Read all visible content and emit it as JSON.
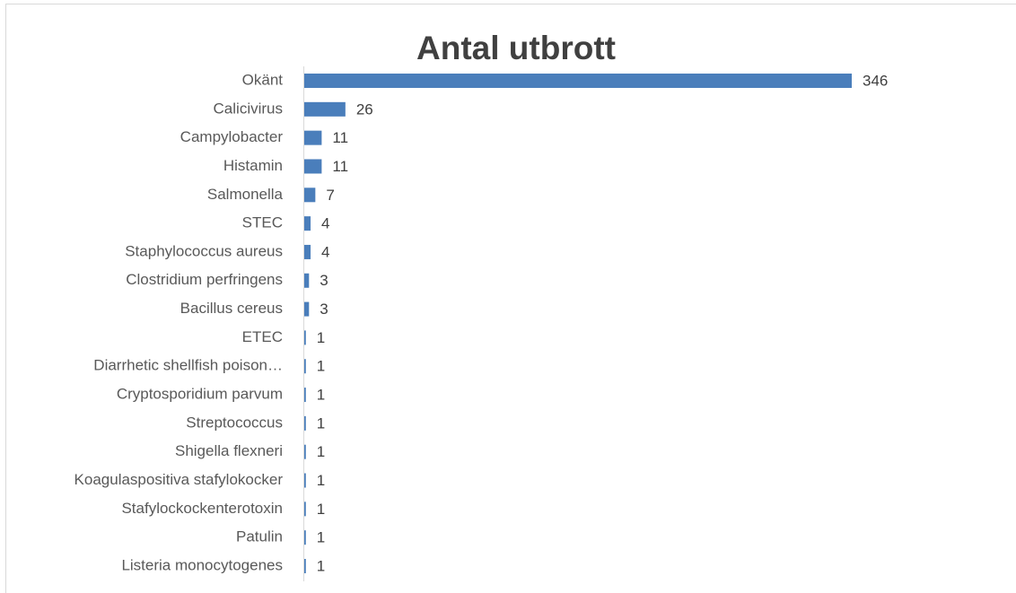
{
  "chart_data": {
    "type": "bar",
    "orientation": "horizontal",
    "title": "Antal utbrott",
    "categories": [
      "Okänt",
      "Calicivirus",
      "Campylobacter",
      "Histamin",
      "Salmonella",
      "STEC",
      "Staphylococcus aureus",
      "Clostridium perfringens",
      "Bacillus cereus",
      "ETEC",
      "Diarrhetic shellfish poison…",
      "Cryptosporidium parvum",
      "Streptococcus",
      "Shigella flexneri",
      "Koagulaspositiva stafylokocker",
      "Stafylockockenterotoxin",
      "Patulin",
      "Listeria monocytogenes"
    ],
    "values": [
      346,
      26,
      11,
      11,
      7,
      4,
      4,
      3,
      3,
      1,
      1,
      1,
      1,
      1,
      1,
      1,
      1,
      1
    ],
    "color": "#4a7ebb"
  }
}
